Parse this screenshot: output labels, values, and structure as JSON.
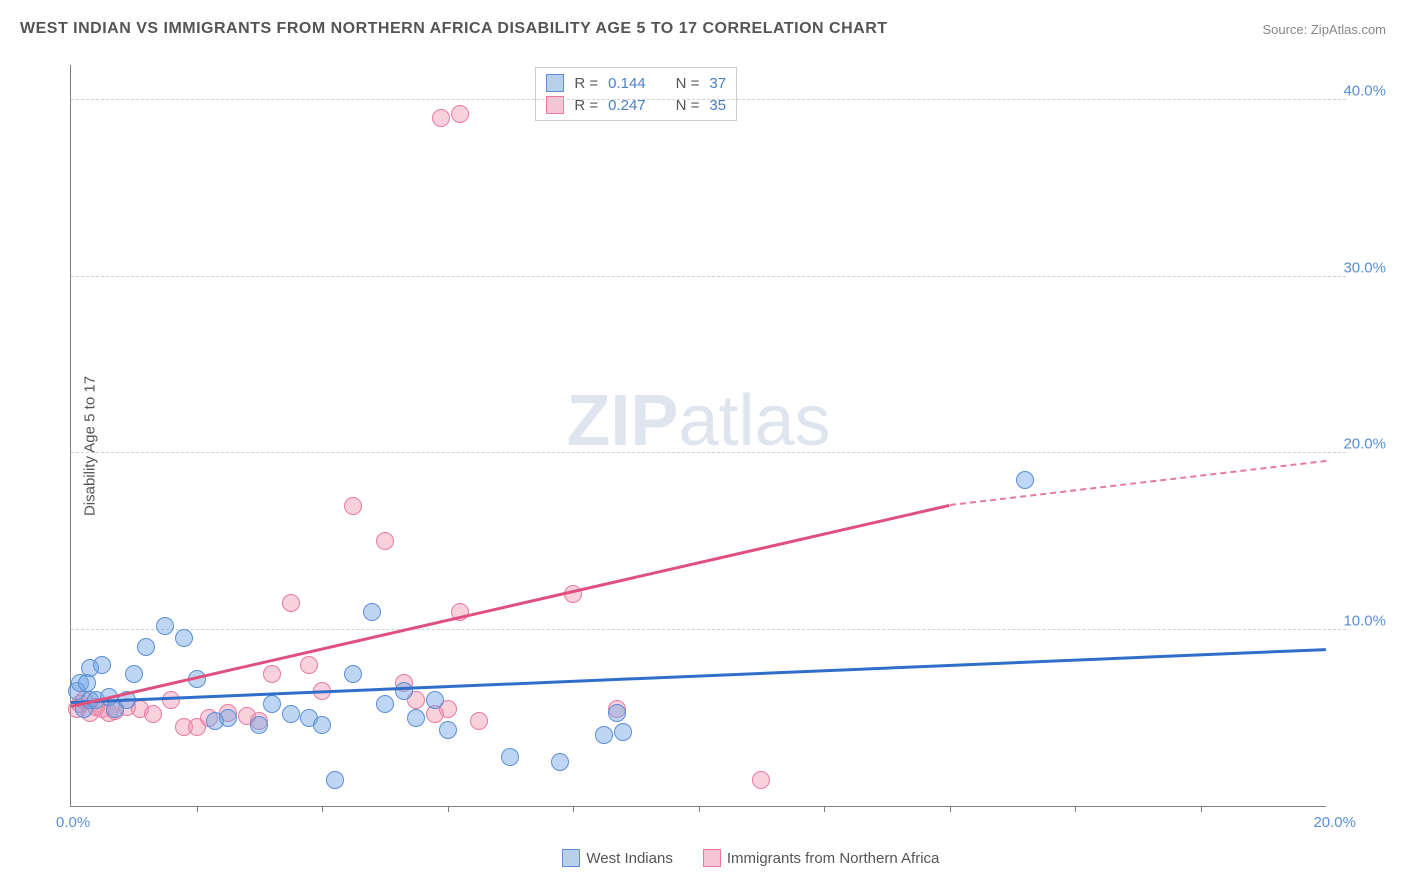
{
  "title": "WEST INDIAN VS IMMIGRANTS FROM NORTHERN AFRICA DISABILITY AGE 5 TO 17 CORRELATION CHART",
  "source": "Source: ZipAtlas.com",
  "y_axis_label": "Disability Age 5 to 17",
  "watermark_bold": "ZIP",
  "watermark_thin": "atlas",
  "chart": {
    "type": "scatter-with-regression",
    "xlim": [
      0,
      20
    ],
    "ylim": [
      0,
      42
    ],
    "x_axis_min_label": "0.0%",
    "x_axis_max_label": "20.0%",
    "x_ticks": [
      2,
      4,
      6,
      8,
      10,
      12,
      14,
      16,
      18
    ],
    "y_gridlines": [
      10,
      20,
      30,
      40
    ],
    "y_tick_labels": [
      "10.0%",
      "20.0%",
      "30.0%",
      "40.0%"
    ],
    "grid_color": "#d0d0d0",
    "axis_color": "#808080",
    "background": "#ffffff"
  },
  "series": [
    {
      "name": "West Indians",
      "color_fill": "rgba(110, 165, 230, 0.45)",
      "color_stroke": "#5b8fd6",
      "swatch_fill": "#b8d0ee",
      "swatch_border": "#5b8fd6",
      "marker_radius": 9,
      "R": "0.144",
      "N": "37",
      "trend_color": "#2f6fc9",
      "trend_start": [
        0,
        5.8
      ],
      "trend_end": [
        20,
        8.8
      ],
      "points": [
        [
          0.1,
          6.5
        ],
        [
          0.15,
          7.0
        ],
        [
          0.2,
          5.5
        ],
        [
          0.25,
          7.0
        ],
        [
          0.3,
          7.8
        ],
        [
          0.3,
          6.0
        ],
        [
          0.4,
          6.0
        ],
        [
          0.5,
          8.0
        ],
        [
          0.6,
          6.2
        ],
        [
          0.7,
          5.5
        ],
        [
          0.9,
          6.0
        ],
        [
          1.0,
          7.5
        ],
        [
          1.2,
          9.0
        ],
        [
          1.5,
          10.2
        ],
        [
          1.8,
          9.5
        ],
        [
          2.0,
          7.2
        ],
        [
          2.3,
          4.8
        ],
        [
          2.5,
          5.0
        ],
        [
          3.0,
          4.6
        ],
        [
          3.2,
          5.8
        ],
        [
          3.5,
          5.2
        ],
        [
          3.8,
          5.0
        ],
        [
          4.0,
          4.6
        ],
        [
          4.2,
          1.5
        ],
        [
          4.5,
          7.5
        ],
        [
          4.8,
          11.0
        ],
        [
          5.0,
          5.8
        ],
        [
          5.5,
          5.0
        ],
        [
          5.8,
          6.0
        ],
        [
          6.0,
          4.3
        ],
        [
          7.0,
          2.8
        ],
        [
          7.8,
          2.5
        ],
        [
          8.5,
          4.0
        ],
        [
          8.7,
          5.3
        ],
        [
          8.8,
          4.2
        ],
        [
          15.2,
          18.5
        ],
        [
          5.3,
          6.5
        ]
      ]
    },
    {
      "name": "Immigrants from Northern Africa",
      "color_fill": "rgba(240, 140, 170, 0.40)",
      "color_stroke": "#e87aa0",
      "swatch_fill": "#f5c5d5",
      "swatch_border": "#e87aa0",
      "marker_radius": 9,
      "R": "0.247",
      "N": "35",
      "trend_color": "#e0507d",
      "trend_start": [
        0,
        5.6
      ],
      "trend_end": [
        14,
        17.0
      ],
      "trend_dash_end": [
        20,
        19.5
      ],
      "points": [
        [
          0.1,
          5.5
        ],
        [
          0.15,
          5.8
        ],
        [
          0.2,
          6.0
        ],
        [
          0.3,
          5.3
        ],
        [
          0.4,
          5.6
        ],
        [
          0.5,
          5.5
        ],
        [
          0.6,
          5.3
        ],
        [
          0.7,
          5.4
        ],
        [
          0.9,
          5.6
        ],
        [
          1.1,
          5.5
        ],
        [
          1.3,
          5.2
        ],
        [
          1.6,
          6.0
        ],
        [
          1.8,
          4.5
        ],
        [
          2.0,
          4.5
        ],
        [
          2.2,
          5.0
        ],
        [
          2.5,
          5.3
        ],
        [
          2.8,
          5.1
        ],
        [
          3.0,
          4.8
        ],
        [
          3.2,
          7.5
        ],
        [
          3.5,
          11.5
        ],
        [
          3.8,
          8.0
        ],
        [
          4.0,
          6.5
        ],
        [
          4.5,
          17.0
        ],
        [
          5.0,
          15.0
        ],
        [
          5.3,
          7.0
        ],
        [
          5.5,
          6.0
        ],
        [
          5.8,
          5.2
        ],
        [
          6.0,
          5.5
        ],
        [
          6.2,
          11.0
        ],
        [
          5.9,
          39.0
        ],
        [
          6.2,
          39.2
        ],
        [
          8.0,
          12.0
        ],
        [
          8.7,
          5.5
        ],
        [
          11.0,
          1.5
        ],
        [
          6.5,
          4.8
        ]
      ]
    }
  ],
  "bottom_legend": [
    {
      "label": "West Indians",
      "fill": "#b8d0ee",
      "border": "#5b8fd6"
    },
    {
      "label": "Immigrants from Northern Africa",
      "fill": "#f5c5d5",
      "border": "#e87aa0"
    }
  ]
}
